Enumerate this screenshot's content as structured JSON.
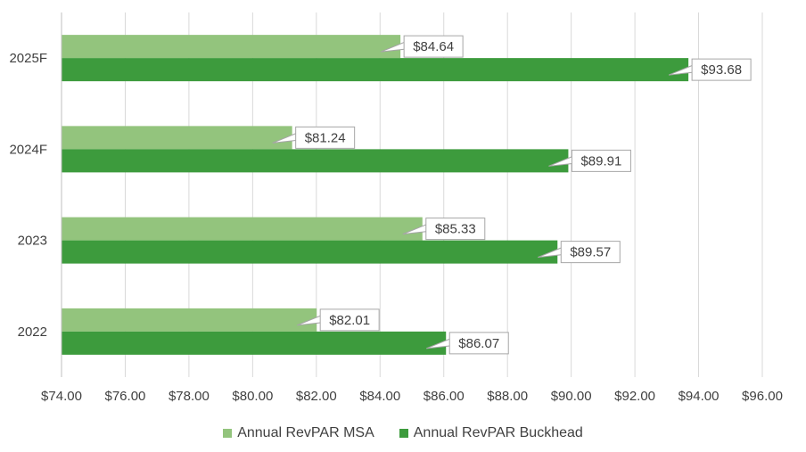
{
  "chart_data": {
    "type": "bar",
    "orientation": "horizontal",
    "categories": [
      "2025F",
      "2024F",
      "2023",
      "2022"
    ],
    "series": [
      {
        "name": "Annual RevPAR MSA",
        "color": "#93c47d",
        "values": [
          84.64,
          81.24,
          85.33,
          82.01
        ],
        "labels": [
          "$84.64",
          "$81.24",
          "$85.33",
          "$82.01"
        ]
      },
      {
        "name": "Annual RevPAR Buckhead",
        "color": "#3d9b3d",
        "values": [
          93.68,
          89.91,
          89.57,
          86.07
        ],
        "labels": [
          "$93.68",
          "$89.91",
          "$89.57",
          "$86.07"
        ]
      }
    ],
    "xlim": [
      74,
      96
    ],
    "xticks": [
      74,
      76,
      78,
      80,
      82,
      84,
      86,
      88,
      90,
      92,
      94,
      96
    ],
    "xtick_labels": [
      "$74.00",
      "$76.00",
      "$78.00",
      "$80.00",
      "$82.00",
      "$84.00",
      "$86.00",
      "$88.00",
      "$90.00",
      "$92.00",
      "$94.00",
      "$96.00"
    ],
    "grid": true,
    "legend_position": "bottom",
    "title": "",
    "xlabel": "",
    "ylabel": ""
  },
  "colors": {
    "grid": "#d9d9d9",
    "text": "#404040",
    "label_border": "#a6a6a6"
  }
}
